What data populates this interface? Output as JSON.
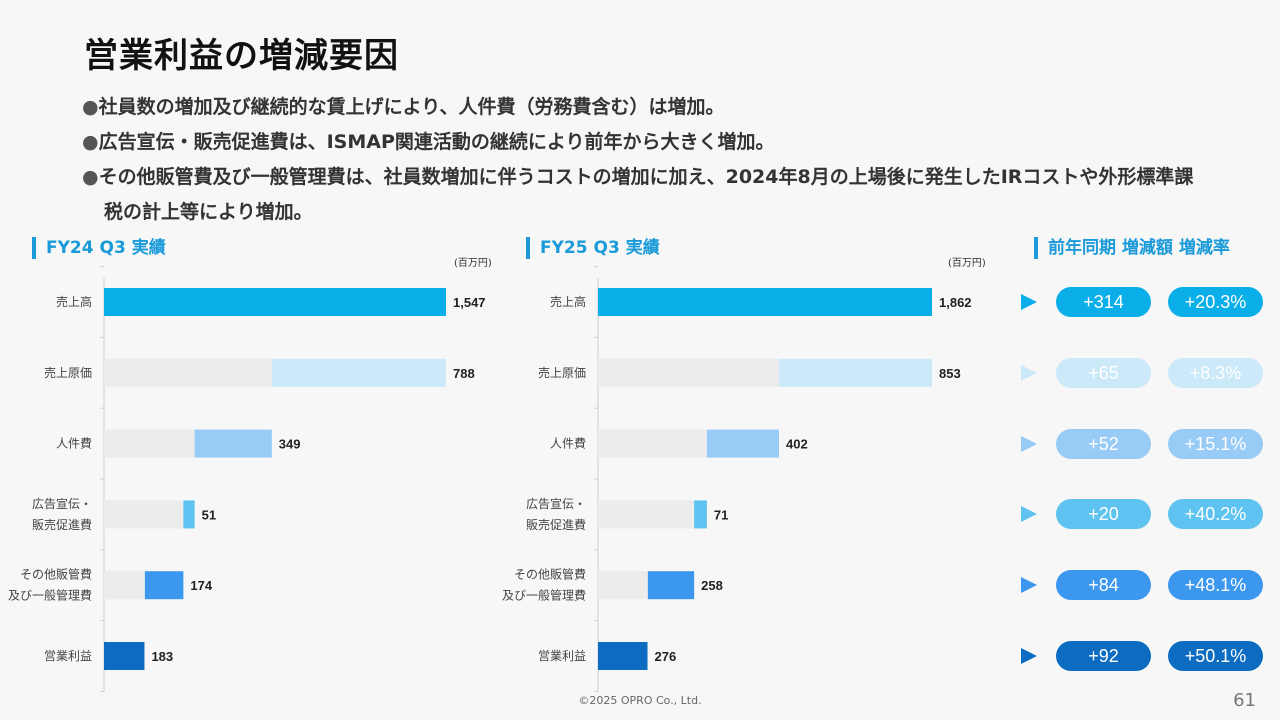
{
  "title": "営業利益の増減要因",
  "bullets": [
    "社員数の増加及び継続的な賃上げにより、人件費（労務費含む）は増加。",
    "広告宣伝・販売促進費は、ISMAP関連活動の継続により前年から大きく増加。",
    "その他販管費及び一般管理費は、社員数増加に伴うコストの増加に加え、2024年8月の上場後に発生したIRコストや外形標準課税の計上等により増加。"
  ],
  "bullet_mark": "●",
  "sections": {
    "fy24": "FY24 Q3 実績",
    "fy25": "FY25 Q3 実績",
    "diff": "前年同期 増減額 増減率"
  },
  "unit_label": "(百万円)",
  "chart_data": [
    {
      "type": "bar",
      "subtype": "waterfall",
      "title": "FY24 Q3 実績",
      "unit": "(百万円)",
      "categories": [
        "売上高",
        "売上原価",
        "人件費",
        "広告宣伝・販売促進費",
        "その他販管費及び一般管理費",
        "営業利益"
      ],
      "category_lines": [
        [
          "売上高"
        ],
        [
          "売上原価"
        ],
        [
          "人件費"
        ],
        [
          "広告宣伝・",
          "販売促進費"
        ],
        [
          "その他販管費",
          "及び一般管理費"
        ],
        [
          "営業利益"
        ]
      ],
      "values": [
        1547,
        788,
        349,
        51,
        174,
        183
      ],
      "value_labels": [
        "1,547",
        "788",
        "349",
        "51",
        "174",
        "183"
      ],
      "colors": [
        "#0aaee8",
        "#cce9fa",
        "#99cbf7",
        "#5fc3f1",
        "#3b98ee",
        "#0b6cc1"
      ]
    },
    {
      "type": "bar",
      "subtype": "waterfall",
      "title": "FY25 Q3 実績",
      "unit": "(百万円)",
      "categories": [
        "売上高",
        "売上原価",
        "人件費",
        "広告宣伝・販売促進費",
        "その他販管費及び一般管理費",
        "営業利益"
      ],
      "category_lines": [
        [
          "売上高"
        ],
        [
          "売上原価"
        ],
        [
          "人件費"
        ],
        [
          "広告宣伝・",
          "販売促進費"
        ],
        [
          "その他販管費",
          "及び一般管理費"
        ],
        [
          "営業利益"
        ]
      ],
      "values": [
        1862,
        853,
        402,
        71,
        258,
        276
      ],
      "value_labels": [
        "1,862",
        "853",
        "402",
        "71",
        "258",
        "276"
      ],
      "colors": [
        "#0aaee8",
        "#cce9fa",
        "#99cbf7",
        "#5fc3f1",
        "#3b98ee",
        "#0b6cc1"
      ]
    }
  ],
  "changes": [
    {
      "amount": "+314",
      "rate": "+20.3%",
      "color": "#0aaee8",
      "arrow": "#0aaee8"
    },
    {
      "amount": "+65",
      "rate": "+8.3%",
      "color": "#cce9fa",
      "arrow": "#cce9fa"
    },
    {
      "amount": "+52",
      "rate": "+15.1%",
      "color": "#99cbf7",
      "arrow": "#99cbf7"
    },
    {
      "amount": "+20",
      "rate": "+40.2%",
      "color": "#5fc3f1",
      "arrow": "#5fc3f1"
    },
    {
      "amount": "+84",
      "rate": "+48.1%",
      "color": "#3b98ee",
      "arrow": "#3b98ee"
    },
    {
      "amount": "+92",
      "rate": "+50.1%",
      "color": "#0b6cc1",
      "arrow": "#0b6cc1"
    }
  ],
  "footer": "©2025 OPRO Co., Ltd.",
  "page_number": "61"
}
